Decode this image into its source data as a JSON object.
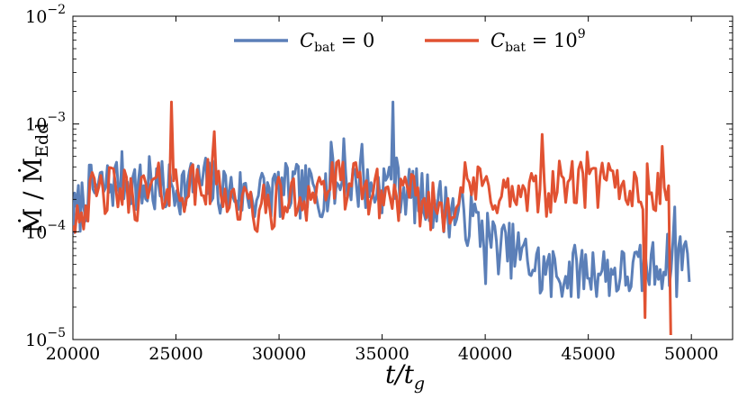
{
  "chart_data": {
    "type": "line",
    "title": "",
    "xlabel": "t/t_g",
    "ylabel": "Ṁ / Ṁ_Edd",
    "xlim": [
      20000,
      52000
    ],
    "ylim": [
      1e-05,
      0.01
    ],
    "yscale": "log",
    "grid": false,
    "legend_position": "top",
    "x_ticks": [
      "20000",
      "25000",
      "30000",
      "35000",
      "40000",
      "45000",
      "50000"
    ],
    "y_ticks": [
      {
        "base": "10",
        "exp": "−2"
      },
      {
        "base": "10",
        "exp": "−3"
      },
      {
        "base": "10",
        "exp": "−4"
      },
      {
        "base": "10",
        "exp": "−5"
      }
    ],
    "series": [
      {
        "name": "C_bat = 0",
        "legend_main": "C",
        "legend_sub": "bat",
        "legend_rest": " = 0",
        "legend_sup": "",
        "color": "#5b7fb8",
        "anchors": [
          [
            20000,
            0.00013
          ],
          [
            20700,
            0.00023
          ],
          [
            21500,
            0.00026
          ],
          [
            22500,
            0.00032
          ],
          [
            23400,
            0.00024
          ],
          [
            24500,
            0.00025
          ],
          [
            25500,
            0.00027
          ],
          [
            26500,
            0.00028
          ],
          [
            27500,
            0.00024
          ],
          [
            28500,
            0.00022
          ],
          [
            29500,
            0.00023
          ],
          [
            30500,
            0.00024
          ],
          [
            31500,
            0.00023
          ],
          [
            32500,
            0.00026
          ],
          [
            33500,
            0.00029
          ],
          [
            34500,
            0.00024
          ],
          [
            35500,
            0.0003
          ],
          [
            36500,
            0.00022
          ],
          [
            37500,
            0.00019
          ],
          [
            38500,
            0.00015
          ],
          [
            39500,
            0.000125
          ],
          [
            40500,
            7.5e-05
          ],
          [
            41500,
            6.5e-05
          ],
          [
            42500,
            4.8e-05
          ],
          [
            43500,
            4e-05
          ],
          [
            44500,
            4.3e-05
          ],
          [
            45500,
            4.5e-05
          ],
          [
            46500,
            4e-05
          ],
          [
            47500,
            4.3e-05
          ],
          [
            48500,
            5e-05
          ],
          [
            49500,
            6.5e-05
          ],
          [
            49900,
            6e-05
          ]
        ],
        "spikes": [
          [
            23700,
            0.0005
          ],
          [
            32500,
            0.00068
          ],
          [
            33100,
            0.00073
          ],
          [
            34000,
            0.00065
          ],
          [
            35500,
            0.0016
          ],
          [
            40000,
            3.3e-05
          ],
          [
            42700,
            2.7e-05
          ],
          [
            43200,
            2.5e-05
          ],
          [
            49200,
            0.00017
          ],
          [
            49300,
            2.5e-05
          ]
        ],
        "noise": 0.26,
        "count": 340,
        "seed": 7
      },
      {
        "name": "C_bat = 10^9",
        "legend_main": "C",
        "legend_sub": "bat",
        "legend_rest": " = 10",
        "legend_sup": "9",
        "color": "#e15232",
        "anchors": [
          [
            20000,
            0.00015
          ],
          [
            21000,
            0.00021
          ],
          [
            22000,
            0.00025
          ],
          [
            23000,
            0.00021
          ],
          [
            24000,
            0.00025
          ],
          [
            25000,
            0.00027
          ],
          [
            26000,
            0.00025
          ],
          [
            27000,
            0.0003
          ],
          [
            28000,
            0.00018
          ],
          [
            29000,
            0.00015
          ],
          [
            30000,
            0.00019
          ],
          [
            31000,
            0.0002
          ],
          [
            32000,
            0.00026
          ],
          [
            33000,
            0.00028
          ],
          [
            34000,
            0.00025
          ],
          [
            35000,
            0.00022
          ],
          [
            36000,
            0.00021
          ],
          [
            37000,
            0.00018
          ],
          [
            38000,
            0.00017
          ],
          [
            39000,
            0.00026
          ],
          [
            40000,
            0.00025
          ],
          [
            41000,
            0.00022
          ],
          [
            42000,
            0.0002
          ],
          [
            43000,
            0.00024
          ],
          [
            44000,
            0.00029
          ],
          [
            45000,
            0.00025
          ],
          [
            46000,
            0.00028
          ],
          [
            47000,
            0.00026
          ],
          [
            48000,
            0.00025
          ],
          [
            48800,
            0.00023
          ],
          [
            49000,
            0.00019
          ]
        ],
        "spikes": [
          [
            24800,
            0.0016
          ],
          [
            26900,
            0.00085
          ],
          [
            42800,
            0.0008
          ],
          [
            44900,
            0.00055
          ],
          [
            48600,
            0.00062
          ],
          [
            47800,
            1.6e-05
          ],
          [
            49000,
            1.1e-05
          ]
        ],
        "noise": 0.24,
        "count": 280,
        "seed": 42
      }
    ]
  }
}
